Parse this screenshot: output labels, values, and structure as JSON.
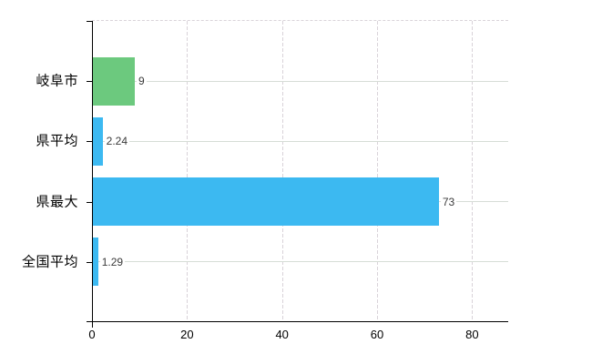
{
  "chart_data": {
    "type": "bar",
    "orientation": "horizontal",
    "title": "",
    "xlabel": "",
    "ylabel": "",
    "categories": [
      "岐阜市",
      "県平均",
      "県最大",
      "全国平均"
    ],
    "values": [
      9,
      2.24,
      73,
      1.29
    ],
    "value_labels": [
      "9",
      "2.24",
      "73",
      "1.29"
    ],
    "bar_colors": [
      "#6cc97e",
      "#3cb9f1",
      "#3cb9f1",
      "#3cb9f1"
    ],
    "x_ticks": [
      0,
      20,
      40,
      60,
      80
    ],
    "x_tick_labels": [
      "0",
      "20",
      "40",
      "60",
      "80"
    ],
    "xlim": [
      0,
      87.6
    ],
    "grid": "horizontal solid, vertical dashed",
    "legend_position": "none"
  },
  "colors": {
    "highlight_bar": "#6cc97e",
    "default_bar": "#3cb9f1",
    "h_gridline": "#d6ddd6",
    "v_gridline": "#d9d3d9",
    "axis": "#000000",
    "background": "#ffffff",
    "label_text": "#000000",
    "value_text": "#3a3a3a"
  }
}
